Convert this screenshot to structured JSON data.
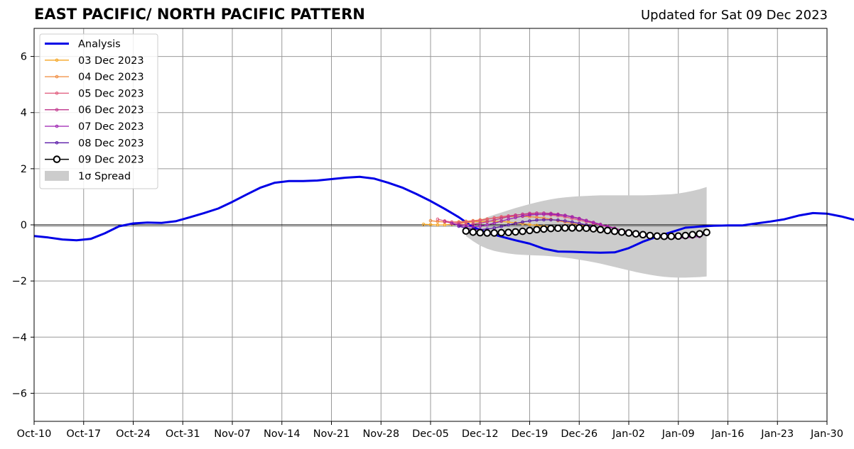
{
  "chart_data": {
    "type": "line",
    "title": "EAST PACIFIC/ NORTH PACIFIC PATTERN",
    "subtitle": "Updated for Sat 09 Dec 2023",
    "xlabel": "",
    "ylabel": "",
    "ylim": [
      -7,
      7
    ],
    "yticks": [
      -6,
      -4,
      -2,
      0,
      2,
      4,
      6
    ],
    "ytick_labels": [
      "−6",
      "−4",
      "−2",
      "0",
      "2",
      "4",
      "6"
    ],
    "xlim": [
      "2023-10-10",
      "2024-01-30"
    ],
    "xticks": [
      "2023-10-10",
      "2023-10-17",
      "2023-10-24",
      "2023-10-31",
      "2023-11-07",
      "2023-11-14",
      "2023-11-21",
      "2023-11-28",
      "2023-12-05",
      "2023-12-12",
      "2023-12-19",
      "2023-12-26",
      "2024-01-02",
      "2024-01-09",
      "2024-01-16",
      "2024-01-23",
      "2024-01-30"
    ],
    "xtick_labels": [
      "Oct-10",
      "Oct-17",
      "Oct-24",
      "Oct-31",
      "Nov-07",
      "Nov-14",
      "Nov-21",
      "Nov-28",
      "Dec-05",
      "Dec-12",
      "Dec-19",
      "Dec-26",
      "Jan-02",
      "Jan-09",
      "Jan-16",
      "Jan-23",
      "Jan-30"
    ],
    "grid": true,
    "legend_position": "top-left",
    "series": [
      {
        "name": "Analysis",
        "color": "#0000e6",
        "style": "line",
        "start_date": "2023-10-10",
        "values": [
          -0.4,
          -0.45,
          -0.52,
          -0.55,
          -0.5,
          -0.3,
          -0.05,
          0.05,
          0.08,
          0.07,
          0.13,
          0.27,
          0.42,
          0.58,
          0.82,
          1.08,
          1.33,
          1.5,
          1.56,
          1.56,
          1.58,
          1.63,
          1.68,
          1.71,
          1.65,
          1.5,
          1.33,
          1.1,
          0.85,
          0.57,
          0.27,
          -0.08,
          -0.28,
          -0.42,
          -0.55,
          -0.67,
          -0.85,
          -0.95,
          -0.96,
          -0.98,
          -0.99,
          -0.98,
          -0.83,
          -0.6,
          -0.42,
          -0.26,
          -0.1,
          -0.06,
          -0.03,
          -0.02,
          -0.02,
          0.05,
          0.12,
          0.2,
          0.33,
          0.42,
          0.4,
          0.3,
          0.17,
          0.05
        ]
      },
      {
        "name": "03 Dec 2023",
        "color": "#f5a623",
        "style": "small-markers",
        "x": [
          "2023-12-04",
          "2023-12-05",
          "2023-12-06",
          "2023-12-07",
          "2023-12-08",
          "2023-12-09",
          "2023-12-10",
          "2023-12-11",
          "2023-12-12",
          "2023-12-13",
          "2023-12-14",
          "2023-12-15",
          "2023-12-16",
          "2023-12-17",
          "2023-12-18",
          "2023-12-19",
          "2023-12-20",
          "2023-12-21",
          "2023-12-22",
          "2023-12-23",
          "2023-12-24",
          "2023-12-25",
          "2023-12-26",
          "2023-12-27",
          "2023-12-28",
          "2023-12-29",
          "2023-12-30",
          "2023-12-31",
          "2024-01-01",
          "2024-01-02",
          "2024-01-03",
          "2024-01-04",
          "2024-01-05",
          "2024-01-06",
          "2024-01-07",
          "2024-01-08",
          "2024-01-09"
        ],
        "values": [
          0.02,
          0.01,
          0.0,
          0.0,
          0.02,
          0.05,
          0.08,
          0.1,
          0.12,
          0.13,
          0.13,
          0.12,
          0.1,
          0.07,
          0.04,
          0.01,
          -0.02,
          -0.05,
          -0.07,
          -0.09,
          -0.11,
          -0.13,
          -0.15,
          -0.17,
          -0.19,
          -0.21,
          -0.23,
          -0.25,
          -0.27,
          -0.29,
          -0.31,
          -0.33,
          -0.35,
          -0.36,
          -0.37,
          -0.37,
          -0.36
        ]
      },
      {
        "name": "04 Dec 2023",
        "color": "#f0883a",
        "style": "small-markers",
        "x": [
          "2023-12-05",
          "2023-12-06",
          "2023-12-07",
          "2023-12-08",
          "2023-12-09",
          "2023-12-10",
          "2023-12-11",
          "2023-12-12",
          "2023-12-13",
          "2023-12-14",
          "2023-12-15",
          "2023-12-16",
          "2023-12-17",
          "2023-12-18",
          "2023-12-19",
          "2023-12-20",
          "2023-12-21",
          "2023-12-22",
          "2023-12-23",
          "2023-12-24",
          "2023-12-25",
          "2023-12-26",
          "2023-12-27",
          "2023-12-28",
          "2023-12-29",
          "2023-12-30",
          "2023-12-31",
          "2024-01-01",
          "2024-01-02",
          "2024-01-03",
          "2024-01-04",
          "2024-01-05",
          "2024-01-06",
          "2024-01-07",
          "2024-01-08",
          "2024-01-09"
        ],
        "values": [
          0.15,
          0.12,
          0.1,
          0.1,
          0.11,
          0.13,
          0.15,
          0.18,
          0.21,
          0.24,
          0.27,
          0.29,
          0.3,
          0.3,
          0.29,
          0.27,
          0.24,
          0.2,
          0.15,
          0.1,
          0.05,
          0.0,
          -0.05,
          -0.1,
          -0.14,
          -0.18,
          -0.22,
          -0.26,
          -0.29,
          -0.32,
          -0.34,
          -0.36,
          -0.37,
          -0.37,
          -0.36,
          -0.35
        ]
      },
      {
        "name": "05 Dec 2023",
        "color": "#e0587a",
        "style": "small-markers",
        "x": [
          "2023-12-06",
          "2023-12-07",
          "2023-12-08",
          "2023-12-09",
          "2023-12-10",
          "2023-12-11",
          "2023-12-12",
          "2023-12-13",
          "2023-12-14",
          "2023-12-15",
          "2023-12-16",
          "2023-12-17",
          "2023-12-18",
          "2023-12-19",
          "2023-12-20",
          "2023-12-21",
          "2023-12-22",
          "2023-12-23",
          "2023-12-24",
          "2023-12-25",
          "2023-12-26",
          "2023-12-27",
          "2023-12-28",
          "2023-12-29",
          "2023-12-30",
          "2023-12-31",
          "2024-01-01",
          "2024-01-02",
          "2024-01-03",
          "2024-01-04",
          "2024-01-05",
          "2024-01-06",
          "2024-01-07",
          "2024-01-08",
          "2024-01-09",
          "2024-01-10"
        ],
        "values": [
          0.2,
          0.14,
          0.1,
          0.08,
          0.1,
          0.13,
          0.16,
          0.2,
          0.25,
          0.29,
          0.32,
          0.35,
          0.37,
          0.38,
          0.38,
          0.37,
          0.35,
          0.32,
          0.28,
          0.23,
          0.17,
          0.11,
          0.05,
          -0.01,
          -0.07,
          -0.13,
          -0.19,
          -0.25,
          -0.3,
          -0.34,
          -0.38,
          -0.41,
          -0.43,
          -0.44,
          -0.43,
          -0.42
        ]
      },
      {
        "name": "06 Dec 2023",
        "color": "#c0368c",
        "style": "small-markers",
        "x": [
          "2023-12-07",
          "2023-12-08",
          "2023-12-09",
          "2023-12-10",
          "2023-12-11",
          "2023-12-12",
          "2023-12-13",
          "2023-12-14",
          "2023-12-15",
          "2023-12-16",
          "2023-12-17",
          "2023-12-18",
          "2023-12-19",
          "2023-12-20",
          "2023-12-21",
          "2023-12-22",
          "2023-12-23",
          "2023-12-24",
          "2023-12-25",
          "2023-12-26",
          "2023-12-27",
          "2023-12-28",
          "2023-12-29",
          "2023-12-30",
          "2023-12-31",
          "2024-01-01",
          "2024-01-02",
          "2024-01-03",
          "2024-01-04",
          "2024-01-05",
          "2024-01-06",
          "2024-01-07",
          "2024-01-08",
          "2024-01-09",
          "2024-01-10",
          "2024-01-11"
        ],
        "values": [
          0.12,
          0.06,
          0.02,
          0.01,
          0.02,
          0.06,
          0.11,
          0.17,
          0.23,
          0.29,
          0.34,
          0.38,
          0.41,
          0.42,
          0.42,
          0.41,
          0.38,
          0.34,
          0.29,
          0.23,
          0.16,
          0.09,
          0.02,
          -0.05,
          -0.12,
          -0.19,
          -0.25,
          -0.31,
          -0.36,
          -0.4,
          -0.43,
          -0.45,
          -0.46,
          -0.46,
          -0.45,
          -0.44
        ]
      },
      {
        "name": "07 Dec 2023",
        "color": "#9c1fb0",
        "style": "small-markers",
        "x": [
          "2023-12-08",
          "2023-12-09",
          "2023-12-10",
          "2023-12-11",
          "2023-12-12",
          "2023-12-13",
          "2023-12-14",
          "2023-12-15",
          "2023-12-16",
          "2023-12-17",
          "2023-12-18",
          "2023-12-19",
          "2023-12-20",
          "2023-12-21",
          "2023-12-22",
          "2023-12-23",
          "2023-12-24",
          "2023-12-25",
          "2023-12-26",
          "2023-12-27",
          "2023-12-28",
          "2023-12-29",
          "2023-12-30",
          "2023-12-31",
          "2024-01-01",
          "2024-01-02",
          "2024-01-03",
          "2024-01-04",
          "2024-01-05",
          "2024-01-06",
          "2024-01-07",
          "2024-01-08",
          "2024-01-09",
          "2024-01-10",
          "2024-01-11",
          "2024-01-12"
        ],
        "values": [
          0.05,
          -0.02,
          -0.06,
          -0.07,
          -0.05,
          0.0,
          0.06,
          0.13,
          0.2,
          0.26,
          0.31,
          0.35,
          0.37,
          0.38,
          0.38,
          0.36,
          0.33,
          0.28,
          0.22,
          0.15,
          0.08,
          0.01,
          -0.06,
          -0.13,
          -0.2,
          -0.26,
          -0.32,
          -0.37,
          -0.41,
          -0.44,
          -0.46,
          -0.47,
          -0.47,
          -0.46,
          -0.44,
          -0.42
        ]
      },
      {
        "name": "08 Dec 2023",
        "color": "#5a1aa8",
        "style": "small-markers",
        "x": [
          "2023-12-09",
          "2023-12-10",
          "2023-12-11",
          "2023-12-12",
          "2023-12-13",
          "2023-12-14",
          "2023-12-15",
          "2023-12-16",
          "2023-12-17",
          "2023-12-18",
          "2023-12-19",
          "2023-12-20",
          "2023-12-21",
          "2023-12-22",
          "2023-12-23",
          "2023-12-24",
          "2023-12-25",
          "2023-12-26",
          "2023-12-27",
          "2023-12-28",
          "2023-12-29",
          "2023-12-30",
          "2023-12-31",
          "2024-01-01",
          "2024-01-02",
          "2024-01-03",
          "2024-01-04",
          "2024-01-05",
          "2024-01-06",
          "2024-01-07",
          "2024-01-08",
          "2024-01-09",
          "2024-01-10",
          "2024-01-11",
          "2024-01-12",
          "2024-01-13"
        ],
        "values": [
          -0.05,
          -0.12,
          -0.16,
          -0.17,
          -0.15,
          -0.11,
          -0.06,
          0.0,
          0.05,
          0.1,
          0.14,
          0.17,
          0.18,
          0.18,
          0.17,
          0.14,
          0.1,
          0.05,
          0.0,
          -0.06,
          -0.12,
          -0.18,
          -0.24,
          -0.29,
          -0.33,
          -0.37,
          -0.4,
          -0.42,
          -0.44,
          -0.45,
          -0.45,
          -0.44,
          -0.42,
          -0.4,
          -0.37,
          -0.34
        ]
      },
      {
        "name": "09 Dec 2023",
        "color": "#000000",
        "style": "open-circles",
        "x": [
          "2023-12-10",
          "2023-12-11",
          "2023-12-12",
          "2023-12-13",
          "2023-12-14",
          "2023-12-15",
          "2023-12-16",
          "2023-12-17",
          "2023-12-18",
          "2023-12-19",
          "2023-12-20",
          "2023-12-21",
          "2023-12-22",
          "2023-12-23",
          "2023-12-24",
          "2023-12-25",
          "2023-12-26",
          "2023-12-27",
          "2023-12-28",
          "2023-12-29",
          "2023-12-30",
          "2023-12-31",
          "2024-01-01",
          "2024-01-02",
          "2024-01-03",
          "2024-01-04",
          "2024-01-05",
          "2024-01-06",
          "2024-01-07",
          "2024-01-08",
          "2024-01-09",
          "2024-01-10",
          "2024-01-11",
          "2024-01-12",
          "2024-01-13"
        ],
        "values": [
          -0.22,
          -0.26,
          -0.28,
          -0.29,
          -0.29,
          -0.28,
          -0.27,
          -0.25,
          -0.23,
          -0.2,
          -0.17,
          -0.15,
          -0.13,
          -0.12,
          -0.11,
          -0.11,
          -0.11,
          -0.12,
          -0.14,
          -0.17,
          -0.2,
          -0.23,
          -0.26,
          -0.29,
          -0.32,
          -0.35,
          -0.38,
          -0.4,
          -0.41,
          -0.41,
          -0.4,
          -0.38,
          -0.35,
          -0.32,
          -0.27
        ]
      }
    ],
    "spread": {
      "name": "1σ Spread",
      "color": "#cccccc",
      "x": [
        "2023-12-10",
        "2023-12-11",
        "2023-12-12",
        "2023-12-13",
        "2023-12-14",
        "2023-12-15",
        "2023-12-16",
        "2023-12-17",
        "2023-12-18",
        "2023-12-19",
        "2023-12-20",
        "2023-12-21",
        "2023-12-22",
        "2023-12-23",
        "2023-12-24",
        "2023-12-25",
        "2023-12-26",
        "2023-12-27",
        "2023-12-28",
        "2023-12-29",
        "2023-12-30",
        "2023-12-31",
        "2024-01-01",
        "2024-01-02",
        "2024-01-03",
        "2024-01-04",
        "2024-01-05",
        "2024-01-06",
        "2024-01-07",
        "2024-01-08",
        "2024-01-09",
        "2024-01-10",
        "2024-01-11",
        "2024-01-12",
        "2024-01-13"
      ],
      "upper": [
        -0.05,
        0.08,
        0.18,
        0.27,
        0.36,
        0.44,
        0.52,
        0.6,
        0.67,
        0.74,
        0.8,
        0.86,
        0.91,
        0.95,
        0.98,
        1.0,
        1.02,
        1.03,
        1.04,
        1.05,
        1.05,
        1.05,
        1.05,
        1.05,
        1.05,
        1.05,
        1.06,
        1.07,
        1.08,
        1.09,
        1.12,
        1.16,
        1.21,
        1.27,
        1.35
      ],
      "lower": [
        -0.4,
        -0.58,
        -0.74,
        -0.85,
        -0.93,
        -0.98,
        -1.02,
        -1.05,
        -1.07,
        -1.08,
        -1.09,
        -1.1,
        -1.12,
        -1.14,
        -1.17,
        -1.2,
        -1.24,
        -1.28,
        -1.33,
        -1.38,
        -1.44,
        -1.5,
        -1.56,
        -1.62,
        -1.68,
        -1.73,
        -1.78,
        -1.82,
        -1.85,
        -1.87,
        -1.88,
        -1.88,
        -1.87,
        -1.86,
        -1.84
      ]
    }
  }
}
